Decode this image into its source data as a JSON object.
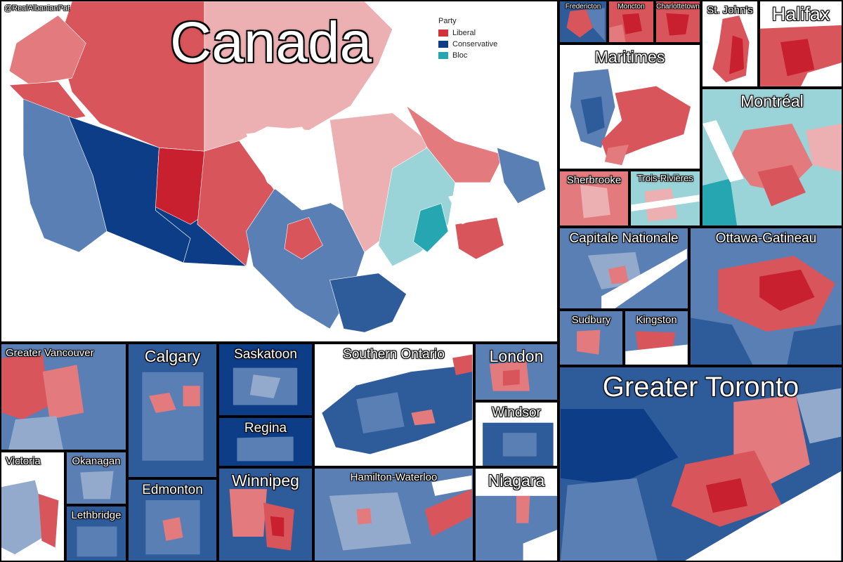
{
  "credit": "@RealAlbanianPat",
  "main_title": "Canada",
  "legend": {
    "title": "Party",
    "entries": [
      {
        "label": "Liberal",
        "color": "#d3343c"
      },
      {
        "label": "Conservative",
        "color": "#0c3d86"
      },
      {
        "label": "Bloc",
        "color": "#26a6b1"
      }
    ]
  },
  "panels": {
    "fredericton": "Fredericton",
    "moncton": "Moncton",
    "charlottetown": "Charlottetown",
    "st_johns": "St. John's",
    "halifax": "Halifax",
    "maritimes": "Maritimes",
    "montreal": "Montréal",
    "sherbrooke": "Sherbrooke",
    "trois_rivieres": "Trois-Rivières",
    "capitale_nationale": "Capitale Nationale",
    "ottawa_gatineau": "Ottawa-Gatineau",
    "sudbury": "Sudbury",
    "kingston": "Kingston",
    "greater_vancouver": "Greater Vancouver",
    "calgary": "Calgary",
    "saskatoon": "Saskatoon",
    "regina": "Regina",
    "southern_ontario": "Southern Ontario",
    "london": "London",
    "windsor": "Windsor",
    "greater_toronto": "Greater Toronto",
    "victoria": "Victoria",
    "okanagan": "Okanagan",
    "lethbridge": "Lethbridge",
    "edmonton": "Edmonton",
    "winnipeg": "Winnipeg",
    "hamilton_waterloo": "Hamilton-Waterloo",
    "niagara": "Niagara"
  },
  "shade_colors": {
    "lib_dark": "#c8202e",
    "lib": "#d9555c",
    "lib_mid": "#e37a7e",
    "lib_light": "#ecb0b3",
    "con_dark": "#0c3d86",
    "con": "#2e5c9b",
    "con_mid": "#5a7fb4",
    "con_light": "#93aacd",
    "bloc": "#26a6b1",
    "bloc_light": "#9ad3d8"
  }
}
